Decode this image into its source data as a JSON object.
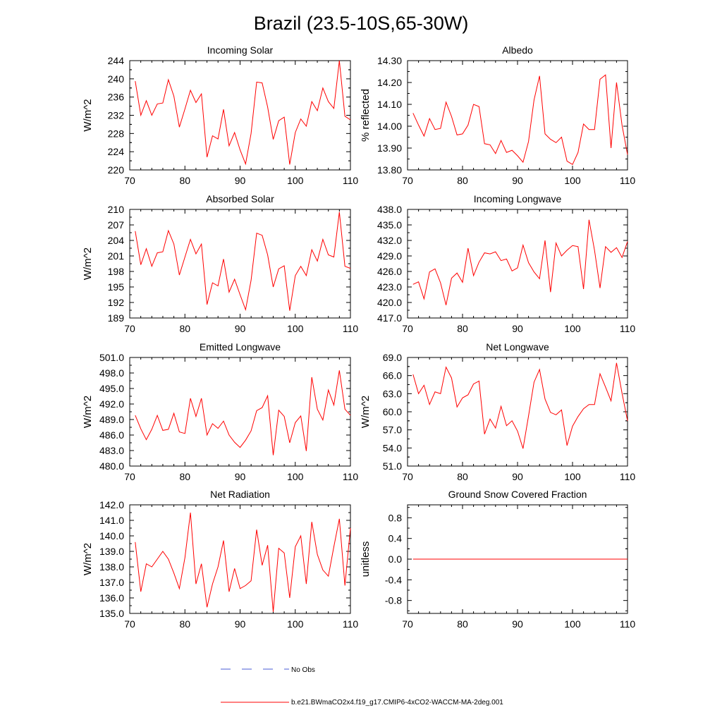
{
  "title": "Brazil (23.5-10S,65-30W)",
  "legend": {
    "entries": [
      {
        "label": "No Obs",
        "color": "#4a5bd4",
        "dash": true
      },
      {
        "label": "b.e21.BWmaCO2x4.f19_g17.CMIP6-4xCO2-WACCM-MA-2deg.001",
        "color": "#ff0000",
        "dash": false
      }
    ]
  },
  "chart_data": [
    {
      "type": "line",
      "title": "Incoming Solar",
      "ylabel": "W/m^2",
      "xlim": [
        70,
        110
      ],
      "xticks": [
        "70",
        "80",
        "90",
        "100",
        "110"
      ],
      "ylim": [
        220,
        244
      ],
      "yticks": [
        "220",
        "224",
        "228",
        "232",
        "236",
        "240",
        "244"
      ],
      "series": [
        {
          "name": "b.e21.BWmaCO2x4.f19_g17.CMIP6-4xCO2-WACCM-MA-2deg.001",
          "color": "#ff0000",
          "x": [
            71,
            72,
            73,
            74,
            75,
            76,
            77,
            78,
            79,
            80,
            81,
            82,
            83,
            84,
            85,
            86,
            87,
            88,
            89,
            90,
            91,
            92,
            93,
            94,
            95,
            96,
            97,
            98,
            99,
            100,
            101,
            102,
            103,
            104,
            105,
            106,
            107,
            108,
            109,
            110
          ],
          "values": [
            239.5,
            232.0,
            235.2,
            232.0,
            234.5,
            234.7,
            239.8,
            236.2,
            229.4,
            233.4,
            237.5,
            234.8,
            236.7,
            222.8,
            227.5,
            226.8,
            233.3,
            225.3,
            228.2,
            224.4,
            221.3,
            228.0,
            239.3,
            239.1,
            233.8,
            226.7,
            230.8,
            231.6,
            221.2,
            228.2,
            231.2,
            229.6,
            235.0,
            233.0,
            238.0,
            235.0,
            233.5,
            244.0,
            231.8,
            231.0
          ]
        }
      ]
    },
    {
      "type": "line",
      "title": "Albedo",
      "ylabel": "% reflected",
      "xlim": [
        70,
        110
      ],
      "xticks": [
        "70",
        "80",
        "90",
        "100",
        "110"
      ],
      "ylim": [
        13.8,
        14.3
      ],
      "yticks": [
        "13.80",
        "13.90",
        "14.00",
        "14.10",
        "14.20",
        "14.30"
      ],
      "series": [
        {
          "name": "b.e21.BWmaCO2x4.f19_g17.CMIP6-4xCO2-WACCM-MA-2deg.001",
          "color": "#ff0000",
          "x": [
            71,
            72,
            73,
            74,
            75,
            76,
            77,
            78,
            79,
            80,
            81,
            82,
            83,
            84,
            85,
            86,
            87,
            88,
            89,
            90,
            91,
            92,
            93,
            94,
            95,
            96,
            97,
            98,
            99,
            100,
            101,
            102,
            103,
            104,
            105,
            106,
            107,
            108,
            109,
            110
          ],
          "values": [
            14.06,
            14.005,
            13.955,
            14.035,
            13.985,
            13.99,
            14.11,
            14.045,
            13.96,
            13.965,
            14.005,
            14.1,
            14.09,
            13.92,
            13.915,
            13.875,
            13.935,
            13.88,
            13.89,
            13.865,
            13.835,
            13.93,
            14.12,
            14.23,
            13.965,
            13.94,
            13.925,
            13.95,
            13.84,
            13.825,
            13.88,
            14.01,
            13.985,
            13.985,
            14.215,
            14.235,
            13.9,
            14.2,
            14.005,
            13.87
          ]
        }
      ]
    },
    {
      "type": "line",
      "title": "Absorbed Solar",
      "ylabel": "W/m^2",
      "xlim": [
        70,
        110
      ],
      "xticks": [
        "70",
        "80",
        "90",
        "100",
        "110"
      ],
      "ylim": [
        189,
        210
      ],
      "yticks": [
        "189",
        "192",
        "195",
        "198",
        "201",
        "204",
        "207",
        "210"
      ],
      "series": [
        {
          "name": "b.e21.BWmaCO2x4.f19_g17.CMIP6-4xCO2-WACCM-MA-2deg.001",
          "color": "#ff0000",
          "x": [
            71,
            72,
            73,
            74,
            75,
            76,
            77,
            78,
            79,
            80,
            81,
            82,
            83,
            84,
            85,
            86,
            87,
            88,
            89,
            90,
            91,
            92,
            93,
            94,
            95,
            96,
            97,
            98,
            99,
            100,
            101,
            102,
            103,
            104,
            105,
            106,
            107,
            108,
            109,
            110
          ],
          "values": [
            205.8,
            199.3,
            202.4,
            199.0,
            201.6,
            201.8,
            205.9,
            203.3,
            197.3,
            200.8,
            204.2,
            201.4,
            203.3,
            191.6,
            195.8,
            195.2,
            200.4,
            194.0,
            196.5,
            193.5,
            190.6,
            196.3,
            205.4,
            205.0,
            201.2,
            195.0,
            198.5,
            199.1,
            190.4,
            197.2,
            199.0,
            197.2,
            202.2,
            200.0,
            204.2,
            201.2,
            200.8,
            209.5,
            199.0,
            198.6
          ]
        }
      ]
    },
    {
      "type": "line",
      "title": "Incoming Longwave",
      "ylabel": "",
      "xlim": [
        70,
        110
      ],
      "xticks": [
        "70",
        "80",
        "90",
        "100",
        "110"
      ],
      "ylim": [
        417,
        438
      ],
      "yticks": [
        "417.0",
        "420.0",
        "423.0",
        "426.0",
        "429.0",
        "432.0",
        "435.0",
        "438.0"
      ],
      "series": [
        {
          "name": "b.e21.BWmaCO2x4.f19_g17.CMIP6-4xCO2-WACCM-MA-2deg.001",
          "color": "#ff0000",
          "x": [
            71,
            72,
            73,
            74,
            75,
            76,
            77,
            78,
            79,
            80,
            81,
            82,
            83,
            84,
            85,
            86,
            87,
            88,
            89,
            90,
            91,
            92,
            93,
            94,
            95,
            96,
            97,
            98,
            99,
            100,
            101,
            102,
            103,
            104,
            105,
            106,
            107,
            108,
            109,
            110
          ],
          "values": [
            423.5,
            424.0,
            420.7,
            425.9,
            426.5,
            423.8,
            419.5,
            424.7,
            425.7,
            423.9,
            430.5,
            425.2,
            427.8,
            429.6,
            429.4,
            429.8,
            428.1,
            428.4,
            426.1,
            426.7,
            431.1,
            427.7,
            425.9,
            424.6,
            432.0,
            422.0,
            431.5,
            429.0,
            430.1,
            431.0,
            430.8,
            422.6,
            436.0,
            430.1,
            422.8,
            430.8,
            429.7,
            430.6,
            428.7,
            431.8
          ]
        }
      ]
    },
    {
      "type": "line",
      "title": "Emitted Longwave",
      "ylabel": "W/m^2",
      "xlim": [
        70,
        110
      ],
      "xticks": [
        "70",
        "80",
        "90",
        "100",
        "110"
      ],
      "ylim": [
        480,
        501
      ],
      "yticks": [
        "480.0",
        "483.0",
        "486.0",
        "489.0",
        "492.0",
        "495.0",
        "498.0",
        "501.0"
      ],
      "series": [
        {
          "name": "b.e21.BWmaCO2x4.f19_g17.CMIP6-4xCO2-WACCM-MA-2deg.001",
          "color": "#ff0000",
          "x": [
            71,
            72,
            73,
            74,
            75,
            76,
            77,
            78,
            79,
            80,
            81,
            82,
            83,
            84,
            85,
            86,
            87,
            88,
            89,
            90,
            91,
            92,
            93,
            94,
            95,
            96,
            97,
            98,
            99,
            100,
            101,
            102,
            103,
            104,
            105,
            106,
            107,
            108,
            109,
            110
          ],
          "values": [
            489.8,
            487.2,
            485.1,
            487.1,
            489.8,
            486.9,
            487.1,
            490.2,
            486.6,
            486.3,
            493.1,
            489.6,
            493.1,
            486.0,
            488.2,
            487.3,
            488.7,
            486.0,
            484.6,
            483.6,
            485.0,
            486.8,
            490.7,
            491.3,
            493.6,
            482.1,
            490.8,
            489.6,
            484.5,
            488.4,
            489.7,
            482.9,
            497.2,
            491.0,
            488.9,
            494.7,
            491.8,
            498.5,
            491.0,
            489.8
          ]
        }
      ]
    },
    {
      "type": "line",
      "title": "Net Longwave",
      "ylabel": "W/m^2",
      "xlim": [
        70,
        110
      ],
      "xticks": [
        "70",
        "80",
        "90",
        "100",
        "110"
      ],
      "ylim": [
        51,
        69
      ],
      "yticks": [
        "51.0",
        "54.0",
        "57.0",
        "60.0",
        "63.0",
        "66.0",
        "69.0"
      ],
      "series": [
        {
          "name": "b.e21.BWmaCO2x4.f19_g17.CMIP6-4xCO2-WACCM-MA-2deg.001",
          "color": "#ff0000",
          "x": [
            71,
            72,
            73,
            74,
            75,
            76,
            77,
            78,
            79,
            80,
            81,
            82,
            83,
            84,
            85,
            86,
            87,
            88,
            89,
            90,
            91,
            92,
            93,
            94,
            95,
            96,
            97,
            98,
            99,
            100,
            101,
            102,
            103,
            104,
            105,
            106,
            107,
            108,
            109,
            110
          ],
          "values": [
            66.2,
            63.0,
            64.4,
            61.2,
            63.3,
            63.0,
            67.4,
            65.6,
            60.8,
            62.3,
            62.8,
            64.6,
            65.1,
            56.3,
            58.8,
            57.3,
            60.9,
            57.7,
            58.5,
            56.8,
            53.9,
            59.3,
            64.9,
            67.0,
            62.1,
            59.9,
            59.5,
            60.3,
            54.4,
            57.6,
            59.2,
            60.5,
            61.2,
            61.2,
            66.3,
            64.1,
            61.8,
            68.1,
            63.1,
            58.5
          ]
        }
      ]
    },
    {
      "type": "line",
      "title": "Net Radiation",
      "ylabel": "W/m^2",
      "xlim": [
        70,
        110
      ],
      "xticks": [
        "70",
        "80",
        "90",
        "100",
        "110"
      ],
      "ylim": [
        135,
        142
      ],
      "yticks": [
        "135.0",
        "136.0",
        "137.0",
        "138.0",
        "139.0",
        "140.0",
        "141.0",
        "142.0"
      ],
      "series": [
        {
          "name": "b.e21.BWmaCO2x4.f19_g17.CMIP6-4xCO2-WACCM-MA-2deg.001",
          "color": "#ff0000",
          "x": [
            71,
            72,
            73,
            74,
            75,
            76,
            77,
            78,
            79,
            80,
            81,
            82,
            83,
            84,
            85,
            86,
            87,
            88,
            89,
            90,
            91,
            92,
            93,
            94,
            95,
            96,
            97,
            98,
            99,
            100,
            101,
            102,
            103,
            104,
            105,
            106,
            107,
            108,
            109,
            110
          ],
          "values": [
            139.6,
            136.4,
            138.2,
            138.0,
            138.5,
            139.0,
            138.5,
            137.6,
            136.6,
            138.6,
            141.5,
            136.9,
            138.2,
            135.4,
            136.9,
            138.0,
            139.7,
            136.4,
            137.9,
            136.6,
            136.8,
            137.1,
            140.4,
            138.1,
            139.4,
            135.1,
            139.2,
            138.9,
            136.0,
            139.3,
            140.0,
            136.9,
            140.9,
            138.8,
            137.8,
            137.4,
            139.3,
            141.1,
            136.8,
            140.5
          ]
        }
      ]
    },
    {
      "type": "line",
      "title": "Ground Snow Covered Fraction",
      "ylabel": "unitless",
      "xlim": [
        70,
        110
      ],
      "xticks": [
        "70",
        "80",
        "90",
        "100",
        "110"
      ],
      "ylim": [
        -1.05,
        1.05
      ],
      "yticks": [
        "-0.8",
        "-0.4",
        "0.0",
        "0.4",
        "0.8"
      ],
      "ytick_values": [
        -0.8,
        -0.4,
        0.0,
        0.4,
        0.8
      ],
      "series": [
        {
          "name": "b.e21.BWmaCO2x4.f19_g17.CMIP6-4xCO2-WACCM-MA-2deg.001",
          "color": "#ff0000",
          "x": [
            71,
            110
          ],
          "values": [
            0.0,
            0.0
          ]
        }
      ]
    }
  ]
}
